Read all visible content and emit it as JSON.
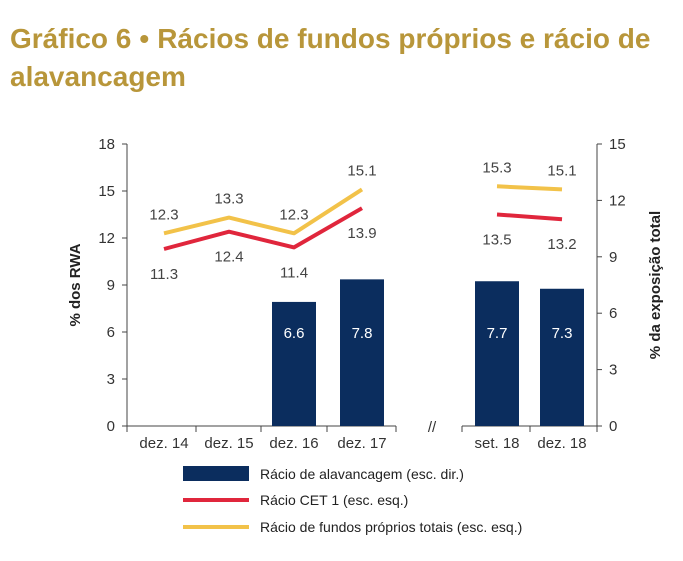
{
  "title": {
    "prefix": "Gráfico 6",
    "bullet": "•",
    "text": "Rácios de fundos próprios e rácio de alavancagem"
  },
  "chart_data": {
    "type": "bar+line",
    "categories": [
      "dez. 14",
      "dez. 15",
      "dez. 16",
      "dez. 17",
      "set. 18",
      "dez. 18"
    ],
    "axis_break_label": "//",
    "y_left": {
      "label": "% dos RWA",
      "min": 0,
      "max": 18,
      "ticks": [
        0,
        3,
        6,
        9,
        12,
        15,
        18
      ]
    },
    "y_right": {
      "label": "% da exposição total",
      "min": 0,
      "max": 15,
      "ticks": [
        0,
        3,
        6,
        9,
        12,
        15
      ]
    },
    "series": [
      {
        "name": "Rácio de alavancagem (esc. dir.)",
        "type": "bar",
        "axis": "right",
        "color": "#0b2d5e",
        "values": [
          null,
          null,
          6.6,
          7.8,
          7.7,
          7.3
        ]
      },
      {
        "name": "Rácio CET 1 (esc. esq.)",
        "type": "line",
        "axis": "left",
        "color": "#e0263c",
        "values": [
          11.3,
          12.4,
          11.4,
          13.9,
          13.5,
          13.2
        ]
      },
      {
        "name": "Rácio de fundos próprios totais (esc. esq.)",
        "type": "line",
        "axis": "left",
        "color": "#f2c249",
        "values": [
          12.3,
          13.3,
          12.3,
          15.1,
          15.3,
          15.1
        ]
      }
    ],
    "segments": [
      [
        0,
        1,
        2,
        3
      ],
      [
        4,
        5
      ]
    ],
    "legend_position": "bottom",
    "grid": false
  }
}
